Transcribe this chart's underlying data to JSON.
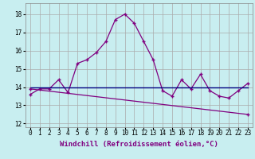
{
  "xlabel": "Windchill (Refroidissement éolien,°C)",
  "bg_color": "#c8eef0",
  "grid_color": "#aaaaaa",
  "line_color": "#800080",
  "line_color2": "#000080",
  "ylim": [
    11.8,
    18.6
  ],
  "xlim": [
    -0.5,
    23.5
  ],
  "yticks": [
    12,
    13,
    14,
    15,
    16,
    17,
    18
  ],
  "xticks": [
    0,
    1,
    2,
    3,
    4,
    5,
    6,
    7,
    8,
    9,
    10,
    11,
    12,
    13,
    14,
    15,
    16,
    17,
    18,
    19,
    20,
    21,
    22,
    23
  ],
  "curve1_x": [
    0,
    1,
    2,
    3,
    4,
    5,
    6,
    7,
    8,
    9,
    10,
    11,
    12,
    13,
    14,
    15,
    16,
    17,
    18,
    19,
    20,
    21,
    22,
    23
  ],
  "curve1_y": [
    13.6,
    13.9,
    13.9,
    14.4,
    13.7,
    15.3,
    15.5,
    15.9,
    16.5,
    17.7,
    18.0,
    17.5,
    16.5,
    15.5,
    13.8,
    13.5,
    14.4,
    13.9,
    14.7,
    13.8,
    13.5,
    13.4,
    13.8,
    14.2
  ],
  "curve2_x": [
    0,
    23
  ],
  "curve2_y": [
    14.0,
    14.0
  ],
  "curve3_x": [
    0,
    23
  ],
  "curve3_y": [
    13.9,
    12.5
  ],
  "label_fontsize": 6.5,
  "tick_fontsize": 5.5
}
